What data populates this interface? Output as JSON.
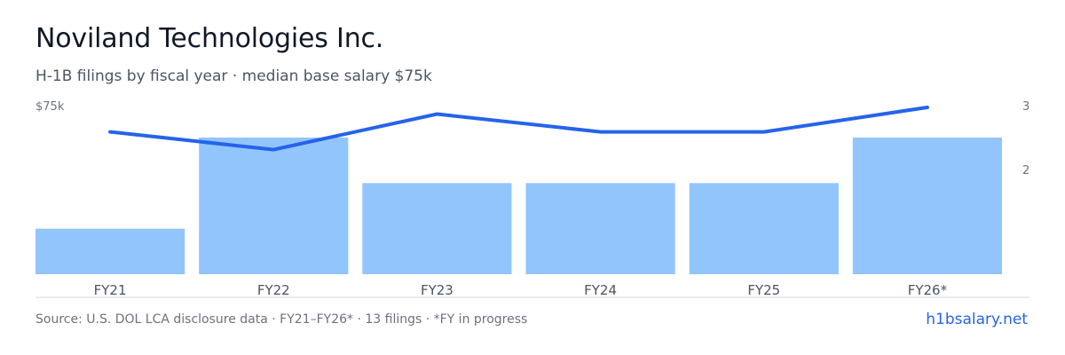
{
  "header": {
    "title": "Noviland Technologies Inc.",
    "subtitle": "H-1B filings by fiscal year · median base salary $75k"
  },
  "footer": {
    "source": "Source: U.S. DOL LCA disclosure data · FY21–FY26* · 13 filings · *FY in progress",
    "link": "h1bsalary.net"
  },
  "colors": {
    "bar": "#93c5fd",
    "line": "#2563eb",
    "axis": "#d1d5db"
  },
  "chart_data": {
    "type": "bar",
    "categories": [
      "FY21",
      "FY22",
      "FY23",
      "FY24",
      "FY25",
      "FY26*"
    ],
    "series": [
      {
        "type": "bar",
        "axis": "right",
        "values": [
          1,
          3,
          2,
          2,
          2,
          3
        ]
      },
      {
        "type": "line",
        "axis": "left",
        "values": [
          64,
          56,
          72,
          64,
          64,
          75
        ]
      }
    ],
    "left_axis": {
      "label": "$75k",
      "max": 75
    },
    "right_axis": {
      "ticks": [
        "2",
        "3"
      ],
      "max": 3
    },
    "grid": false
  }
}
